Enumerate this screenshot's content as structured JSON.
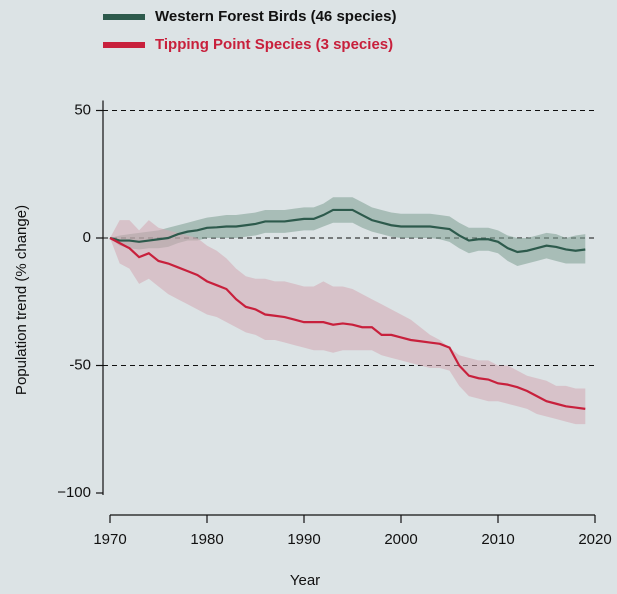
{
  "chart_data": {
    "type": "line",
    "xlabel": "Year",
    "ylabel": "Population trend (% change)",
    "x": [
      1970,
      1971,
      1972,
      1973,
      1974,
      1975,
      1976,
      1977,
      1978,
      1979,
      1980,
      1981,
      1982,
      1983,
      1984,
      1985,
      1986,
      1987,
      1988,
      1989,
      1990,
      1991,
      1992,
      1993,
      1994,
      1995,
      1996,
      1997,
      1998,
      1999,
      2000,
      2001,
      2002,
      2003,
      2004,
      2005,
      2006,
      2007,
      2008,
      2009,
      2010,
      2011,
      2012,
      2013,
      2014,
      2015,
      2016,
      2017,
      2018,
      2019
    ],
    "xlim": [
      1970,
      2020
    ],
    "xticks": [
      1970,
      1980,
      1990,
      2000,
      2010,
      2020
    ],
    "ylim": [
      -100,
      50
    ],
    "yticks": [
      50,
      0,
      -50,
      {
        "value": -100,
        "label": "−100"
      }
    ],
    "grid": true,
    "series": [
      {
        "name": "Western Forest Birds (46 species)",
        "color": "#2d5a4c",
        "band_color": "#7e9e92",
        "values": [
          0,
          -1,
          -1,
          -1.5,
          -1,
          -0.5,
          0,
          1.5,
          2.5,
          3,
          4,
          4.2,
          4.5,
          4.5,
          5,
          5.5,
          6.5,
          6.5,
          6.5,
          7,
          7.5,
          7.5,
          9,
          11,
          11,
          11,
          9,
          7,
          6,
          5,
          4.5,
          4.5,
          4.5,
          4.5,
          4,
          3.5,
          1,
          -1,
          -0.5,
          -0.5,
          -1.5,
          -4,
          -5.5,
          -5,
          -4,
          -3,
          -3.5,
          -4.5,
          -5,
          -4.5
        ],
        "upper": [
          0,
          1,
          1.5,
          2,
          2.5,
          3,
          4,
          5,
          6,
          7,
          8,
          8.5,
          9,
          9,
          9.5,
          10,
          11,
          11,
          11,
          11.5,
          12,
          12,
          13.5,
          16,
          16,
          16,
          14,
          12,
          11,
          10,
          9.5,
          9.5,
          9.5,
          9.5,
          9,
          8.5,
          6,
          4,
          4,
          4,
          3,
          1,
          0,
          0,
          1,
          2,
          1.5,
          0,
          1,
          1.5
        ],
        "lower": [
          0,
          -3,
          -4,
          -4.5,
          -4,
          -4,
          -3.5,
          -2,
          -1,
          -1,
          0,
          0,
          0,
          0,
          0.5,
          1,
          2,
          2,
          2,
          2.5,
          3,
          3,
          4.5,
          6,
          6,
          6,
          4,
          2.5,
          1.5,
          0.5,
          0,
          0,
          0,
          0,
          -0.5,
          -1.5,
          -4,
          -6,
          -5,
          -5,
          -6,
          -9,
          -11,
          -10,
          -9,
          -8,
          -9,
          -10,
          -10,
          -10
        ]
      },
      {
        "name": "Tipping Point Species (3 species)",
        "color": "#c8203c",
        "band_color": "#d3a8b3",
        "values": [
          0,
          -2,
          -4,
          -7.5,
          -6,
          -9,
          -10,
          -11.5,
          -13,
          -14.5,
          -17,
          -18.5,
          -20,
          -24,
          -27,
          -28,
          -30,
          -30.5,
          -31,
          -32,
          -33,
          -33,
          -33,
          -34,
          -33.5,
          -34,
          -35,
          -35,
          -38,
          -38,
          -39,
          -40,
          -40.5,
          -41,
          -41.5,
          -43,
          -50,
          -54,
          -55,
          -55.5,
          -57,
          -57.5,
          -58.5,
          -60,
          -62,
          -64,
          -65,
          -66,
          -66.5,
          -67
        ],
        "upper": [
          0,
          7,
          7,
          3,
          7,
          4,
          3,
          2,
          1,
          0,
          -3,
          -5,
          -8,
          -12,
          -15,
          -16,
          -16,
          -17,
          -17,
          -18,
          -19,
          -19,
          -17,
          -19,
          -19,
          -20,
          -22,
          -24,
          -26,
          -28,
          -30,
          -32,
          -35,
          -38,
          -40,
          -43,
          -46,
          -47,
          -48,
          -48,
          -50,
          -50,
          -52,
          -54,
          -55,
          -56,
          -58,
          -58,
          -59,
          -59
        ],
        "lower": [
          0,
          -10,
          -12,
          -18,
          -16,
          -19,
          -22,
          -24,
          -26,
          -28,
          -30,
          -31,
          -33,
          -35,
          -37,
          -38,
          -40,
          -40,
          -41,
          -42,
          -43,
          -44,
          -44,
          -45,
          -44,
          -44,
          -44,
          -44,
          -46,
          -47,
          -48,
          -49,
          -50,
          -51,
          -51,
          -52,
          -58,
          -62,
          -63,
          -64,
          -64,
          -65,
          -66,
          -67,
          -69,
          -70,
          -71,
          -72,
          -73,
          -73
        ]
      }
    ]
  }
}
